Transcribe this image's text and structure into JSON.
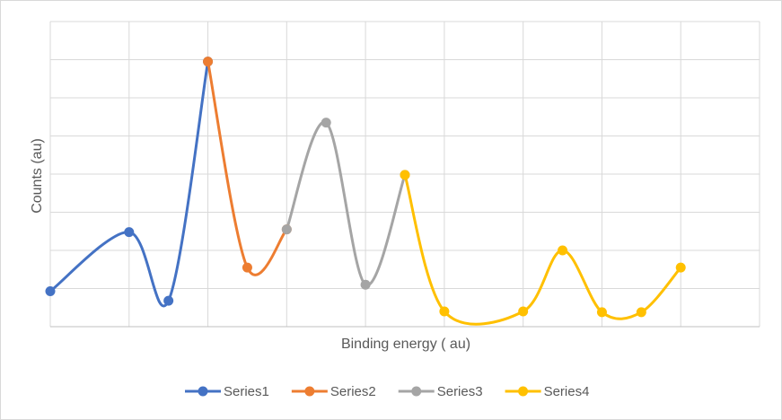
{
  "chart_data": {
    "type": "line",
    "title": "",
    "xlabel": "Binding energy ( au)",
    "ylabel": "Counts (au)",
    "xlim": [
      0,
      18
    ],
    "ylim": [
      0,
      8
    ],
    "grid": true,
    "smooth": true,
    "tick_labels_visible": false,
    "legend_position": "bottom",
    "series": [
      {
        "name": "Series1",
        "color": "#4472C4",
        "x": [
          0,
          2,
          3,
          4
        ],
        "y": [
          0.93,
          2.48,
          0.68,
          6.95
        ]
      },
      {
        "name": "Series2",
        "color": "#ED7D31",
        "x": [
          4,
          5,
          6
        ],
        "y": [
          6.95,
          1.55,
          2.55
        ]
      },
      {
        "name": "Series3",
        "color": "#A5A5A5",
        "x": [
          6,
          7,
          8,
          9
        ],
        "y": [
          2.55,
          5.35,
          1.1,
          3.98
        ]
      },
      {
        "name": "Series4",
        "color": "#FFC000",
        "x": [
          9,
          10,
          12,
          13,
          14,
          15,
          16
        ],
        "y": [
          3.98,
          0.4,
          0.4,
          2.0,
          0.38,
          0.38,
          1.55
        ]
      }
    ]
  }
}
